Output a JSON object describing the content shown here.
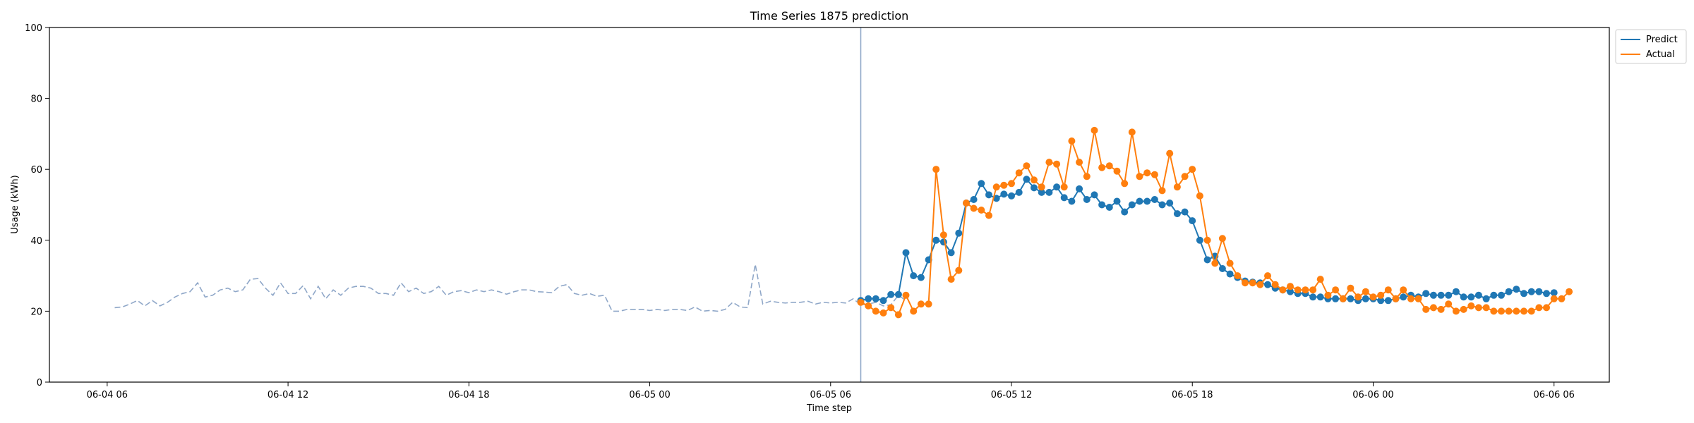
{
  "chart_data": {
    "type": "line",
    "title": "Time Series 1875 prediction",
    "xlabel": "Time step",
    "ylabel": "Usage (kWh)",
    "ylim": [
      0,
      100
    ],
    "yticks": [
      0,
      20,
      40,
      60,
      80,
      100
    ],
    "x_start": "06-04 06:15",
    "x_step_minutes": 15,
    "xticks": [
      "06-04 06",
      "06-04 12",
      "06-04 18",
      "06-05 00",
      "06-05 06",
      "06-05 12",
      "06-05 18",
      "06-06 00",
      "06-06 06"
    ],
    "forecast_start": "06-05 07:00",
    "grid": false,
    "legend_position": "top-right",
    "history": {
      "style": "dashed",
      "color": "#8fa7c8",
      "start": "06-04 06:15",
      "values": [
        21,
        21.2,
        22,
        23,
        21.5,
        23,
        21.5,
        22.5,
        24,
        25,
        25.5,
        28,
        24,
        24.5,
        26,
        26.5,
        25.5,
        26,
        29,
        29.2,
        26.5,
        24.5,
        28,
        25,
        25,
        27.2,
        23.5,
        27,
        23.5,
        26,
        24.5,
        26.5,
        27,
        27,
        26.5,
        25,
        25,
        24.5,
        28,
        25.5,
        26.5,
        25,
        25.5,
        27,
        24.5,
        25.5,
        25.8,
        25.2,
        26,
        25.5,
        26,
        25.5,
        24.8,
        25.5,
        26,
        26,
        25.5,
        25.4,
        25.2,
        27,
        27.5,
        25,
        24.5,
        25,
        24.2,
        24.5,
        20,
        20,
        20.5,
        20.5,
        20.5,
        20.2,
        20.5,
        20.2,
        20.5,
        20.5,
        20.2,
        21.2,
        20,
        20.2,
        20,
        20.5,
        22.5,
        21.2,
        21,
        33.2,
        22,
        22.8,
        22.5,
        22.3,
        22.5,
        22.5,
        22.8,
        22,
        22.5,
        22.3,
        22.5,
        22.3,
        23.5,
        21.8,
        22,
        22.5,
        21.5,
        21.8,
        24.5,
        23
      ]
    },
    "series": [
      {
        "name": "Predict",
        "color": "#1f77b4",
        "start": "06-05 07:00",
        "values": [
          23,
          23.5,
          23.5,
          23,
          24.7,
          24.7,
          36.5,
          30,
          29.5,
          34.5,
          40,
          39.5,
          36.5,
          42,
          50.5,
          51.5,
          56,
          52.8,
          51.8,
          53,
          52.5,
          53.5,
          57.2,
          54.8,
          53.5,
          53.5,
          55,
          52,
          51,
          54.5,
          51.5,
          52.8,
          50,
          49.3,
          51,
          48,
          50,
          51,
          51,
          51.5,
          50,
          50.5,
          47.5,
          48,
          45.5,
          40,
          34.5,
          35.5,
          32,
          30.5,
          29.5,
          28.5,
          28.2,
          28,
          27.5,
          26.5,
          26,
          25.5,
          25,
          25,
          24,
          24,
          23.5,
          23.5,
          23.5,
          23.5,
          23,
          23.5,
          23.5,
          23,
          23,
          23.5,
          24,
          24.5,
          24,
          25,
          24.5,
          24.5,
          24.5,
          25.5,
          24,
          24,
          24.5,
          23.5,
          24.5,
          24.5,
          25.5,
          26.2,
          25,
          25.5,
          25.5,
          25,
          25.2
        ]
      },
      {
        "name": "Actual",
        "color": "#ff7f0e",
        "start": "06-05 07:00",
        "values": [
          22.5,
          21.5,
          20,
          19.5,
          21,
          19,
          24.5,
          20,
          22,
          22,
          60,
          41.5,
          29,
          31.5,
          50.5,
          49,
          48.5,
          47,
          55,
          55.5,
          56,
          59,
          61,
          57,
          55,
          62,
          61.5,
          55,
          68,
          62,
          58,
          71,
          60.5,
          61,
          59.5,
          56,
          70.5,
          58,
          59,
          58.5,
          54,
          64.5,
          55,
          58,
          60,
          52.5,
          40,
          33.5,
          40.5,
          33.5,
          30,
          28,
          28,
          27.5,
          30,
          27.5,
          26,
          27,
          26,
          26,
          26,
          29,
          24.5,
          26,
          23.5,
          26.5,
          24,
          25.5,
          24,
          24.5,
          26,
          23.5,
          26,
          23.5,
          23.5,
          20.5,
          21,
          20.5,
          22,
          20,
          20.5,
          21.5,
          21,
          21,
          20,
          20,
          20,
          20,
          20,
          20,
          21,
          21,
          23.5,
          23.5,
          25.5
        ]
      }
    ]
  }
}
